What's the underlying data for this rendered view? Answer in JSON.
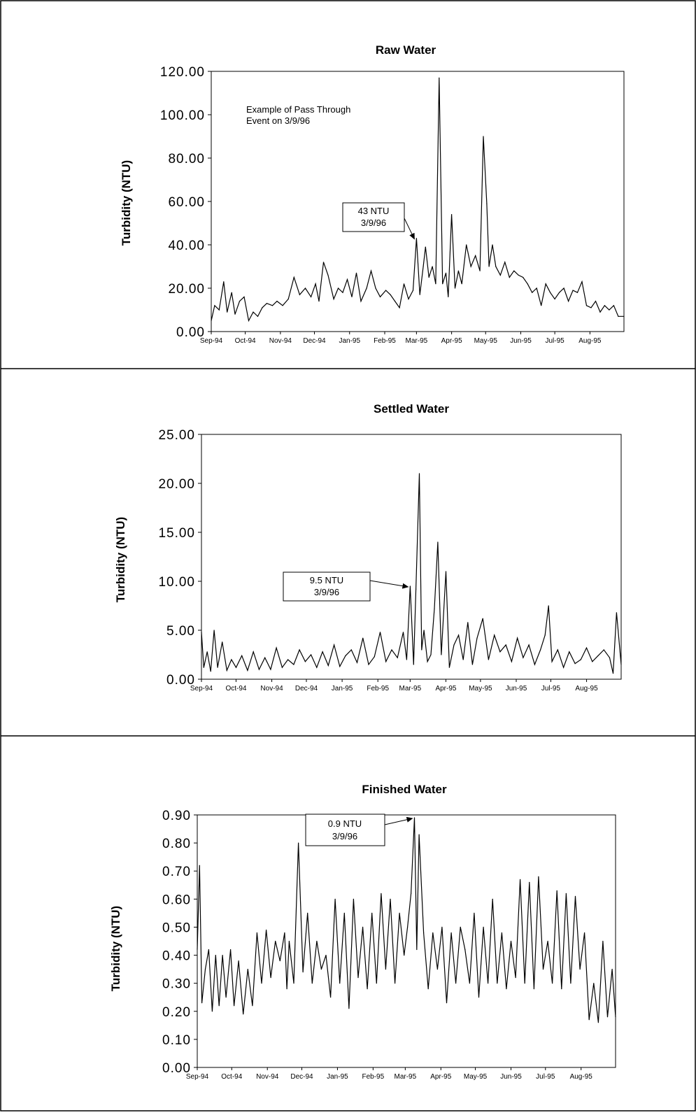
{
  "chart_data": [
    {
      "type": "line",
      "title": "Raw Water",
      "ylabel": "Turbidity (NTU)",
      "xlabel": "",
      "ylim": [
        0,
        120
      ],
      "yticks": [
        "0.00",
        "20.00",
        "40.00",
        "60.00",
        "80.00",
        "100.00",
        "120.00"
      ],
      "categories": [
        "Sep-94",
        "Oct-94",
        "Nov-94",
        "Dec-94",
        "Jan-95",
        "Feb-95",
        "Mar-95",
        "Apr-95",
        "May-95",
        "Jun-95",
        "Jul-95",
        "Aug-95"
      ],
      "x_range": [
        "1994-09-01",
        "1995-08-31"
      ],
      "grid": false,
      "series": [
        {
          "x": [
            "1994-09-01",
            "1994-09-04",
            "1994-09-08",
            "1994-09-12",
            "1994-09-15",
            "1994-09-19",
            "1994-09-22",
            "1994-09-26",
            "1994-09-30",
            "1994-10-04",
            "1994-10-08",
            "1994-10-12",
            "1994-10-16",
            "1994-10-20",
            "1994-10-25",
            "1994-10-29",
            "1994-11-03",
            "1994-11-08",
            "1994-11-13",
            "1994-11-18",
            "1994-11-23",
            "1994-11-28",
            "1994-12-02",
            "1994-12-05",
            "1994-12-09",
            "1994-12-13",
            "1994-12-18",
            "1994-12-22",
            "1994-12-26",
            "1994-12-30",
            "1995-01-03",
            "1995-01-07",
            "1995-01-11",
            "1995-01-16",
            "1995-01-20",
            "1995-01-24",
            "1995-01-28",
            "1995-02-02",
            "1995-02-06",
            "1995-02-10",
            "1995-02-14",
            "1995-02-18",
            "1995-02-22",
            "1995-02-26",
            "1995-03-01",
            "1995-03-04",
            "1995-03-07",
            "1995-03-09",
            "1995-03-12",
            "1995-03-15",
            "1995-03-18",
            "1995-03-21",
            "1995-03-24",
            "1995-03-27",
            "1995-03-29",
            "1995-04-01",
            "1995-04-04",
            "1995-04-07",
            "1995-04-10",
            "1995-04-14",
            "1995-04-18",
            "1995-04-22",
            "1995-04-26",
            "1995-04-29",
            "1995-05-02",
            "1995-05-04",
            "1995-05-07",
            "1995-05-10",
            "1995-05-14",
            "1995-05-18",
            "1995-05-22",
            "1995-05-26",
            "1995-05-30",
            "1995-06-03",
            "1995-06-07",
            "1995-06-11",
            "1995-06-15",
            "1995-06-19",
            "1995-06-23",
            "1995-06-27",
            "1995-07-01",
            "1995-07-05",
            "1995-07-09",
            "1995-07-13",
            "1995-07-17",
            "1995-07-21",
            "1995-07-25",
            "1995-07-29",
            "1995-08-02",
            "1995-08-06",
            "1995-08-10",
            "1995-08-14",
            "1995-08-18",
            "1995-08-22",
            "1995-08-26",
            "1995-08-31"
          ],
          "values": [
            5,
            12,
            10,
            23,
            9,
            18,
            8,
            14,
            16,
            5,
            9,
            7,
            11,
            13,
            12,
            14,
            12,
            15,
            25,
            17,
            20,
            16,
            22,
            14,
            32,
            26,
            15,
            20,
            18,
            24,
            16,
            27,
            14,
            20,
            28,
            20,
            16,
            19,
            17,
            14,
            11,
            22,
            15,
            19,
            43,
            17,
            30,
            39,
            25,
            30,
            22,
            117,
            22,
            27,
            16,
            54,
            20,
            28,
            22,
            40,
            30,
            35,
            28,
            90,
            59,
            30,
            40,
            30,
            26,
            32,
            25,
            28,
            26,
            25,
            22,
            18,
            20,
            12,
            22,
            18,
            15,
            18,
            20,
            14,
            19,
            18,
            23,
            12,
            11,
            14,
            9,
            12,
            10,
            12,
            7,
            7
          ]
        }
      ],
      "annotations": [
        {
          "text": [
            "Example of Pass Through",
            "Event on 3/9/96"
          ]
        },
        {
          "text": [
            "43 NTU",
            "3/9/96"
          ],
          "x": "1995-03-01",
          "y": 43
        }
      ]
    },
    {
      "type": "line",
      "title": "Settled Water",
      "ylabel": "Turbidity (NTU)",
      "xlabel": "",
      "ylim": [
        0,
        25
      ],
      "yticks": [
        "0.00",
        "5.00",
        "10.00",
        "15.00",
        "20.00",
        "25.00"
      ],
      "categories": [
        "Sep-94",
        "Oct-94",
        "Nov-94",
        "Dec-94",
        "Jan-95",
        "Feb-95",
        "Mar-95",
        "Apr-95",
        "May-95",
        "Jun-95",
        "Jul-95",
        "Aug-95"
      ],
      "x_range": [
        "1994-09-01",
        "1995-08-31"
      ],
      "grid": false,
      "series": [
        {
          "x": [
            "1994-09-01",
            "1994-09-03",
            "1994-09-06",
            "1994-09-09",
            "1994-09-12",
            "1994-09-15",
            "1994-09-19",
            "1994-09-23",
            "1994-09-27",
            "1994-10-01",
            "1994-10-06",
            "1994-10-11",
            "1994-10-16",
            "1994-10-21",
            "1994-10-26",
            "1994-10-31",
            "1994-11-05",
            "1994-11-10",
            "1994-11-15",
            "1994-11-20",
            "1994-11-25",
            "1994-11-30",
            "1994-12-05",
            "1994-12-10",
            "1994-12-15",
            "1994-12-20",
            "1994-12-25",
            "1994-12-30",
            "1995-01-04",
            "1995-01-09",
            "1995-01-14",
            "1995-01-19",
            "1995-01-24",
            "1995-01-29",
            "1995-02-03",
            "1995-02-08",
            "1995-02-13",
            "1995-02-18",
            "1995-02-23",
            "1995-02-26",
            "1995-03-01",
            "1995-03-04",
            "1995-03-06",
            "1995-03-09",
            "1995-03-11",
            "1995-03-13",
            "1995-03-16",
            "1995-03-19",
            "1995-03-22",
            "1995-03-25",
            "1995-03-28",
            "1995-04-01",
            "1995-04-04",
            "1995-04-08",
            "1995-04-12",
            "1995-04-16",
            "1995-04-20",
            "1995-04-24",
            "1995-04-28",
            "1995-05-03",
            "1995-05-08",
            "1995-05-13",
            "1995-05-18",
            "1995-05-23",
            "1995-05-28",
            "1995-06-02",
            "1995-06-07",
            "1995-06-12",
            "1995-06-17",
            "1995-06-22",
            "1995-06-26",
            "1995-06-29",
            "1995-07-02",
            "1995-07-07",
            "1995-07-12",
            "1995-07-17",
            "1995-07-22",
            "1995-07-27",
            "1995-08-01",
            "1995-08-06",
            "1995-08-11",
            "1995-08-16",
            "1995-08-21",
            "1995-08-24",
            "1995-08-27",
            "1995-08-31"
          ],
          "values": [
            4.8,
            1.2,
            2.8,
            0.8,
            5.0,
            1.2,
            3.8,
            0.9,
            2.0,
            1.2,
            2.4,
            0.9,
            2.8,
            1.0,
            2.2,
            1.0,
            3.2,
            1.2,
            2.0,
            1.5,
            3.0,
            1.8,
            2.5,
            1.2,
            2.8,
            1.4,
            3.5,
            1.3,
            2.4,
            3.0,
            1.7,
            4.2,
            1.5,
            2.3,
            4.8,
            1.8,
            3.0,
            2.2,
            4.8,
            2.0,
            9.5,
            1.5,
            9.2,
            21.0,
            3.0,
            5.0,
            1.8,
            2.5,
            7.2,
            14.0,
            2.5,
            11.0,
            1.2,
            3.5,
            4.5,
            2.0,
            5.8,
            1.5,
            4.2,
            6.2,
            2.0,
            4.5,
            2.8,
            3.5,
            1.8,
            4.2,
            2.2,
            3.5,
            1.5,
            3.0,
            4.5,
            7.5,
            1.8,
            3.0,
            1.2,
            2.8,
            1.6,
            2.0,
            3.2,
            1.8,
            2.4,
            3.0,
            2.2,
            0.6,
            6.8,
            1.5
          ]
        }
      ],
      "annotations": [
        {
          "text": [
            "9.5 NTU",
            "3/9/96"
          ],
          "x": "1995-03-01",
          "y": 9.5
        }
      ]
    },
    {
      "type": "line",
      "title": "Finished Water",
      "ylabel": "Turbidity (NTU)",
      "xlabel": "",
      "ylim": [
        0,
        0.9
      ],
      "yticks": [
        "0.00",
        "0.10",
        "0.20",
        "0.30",
        "0.40",
        "0.50",
        "0.60",
        "0.70",
        "0.80",
        "0.90"
      ],
      "categories": [
        "Sep-94",
        "Oct-94",
        "Nov-94",
        "Dec-94",
        "Jan-95",
        "Feb-95",
        "Mar-95",
        "Apr-95",
        "May-95",
        "Jun-95",
        "Jul-95",
        "Aug-95"
      ],
      "x_range": [
        "1994-09-01",
        "1995-08-31"
      ],
      "grid": false,
      "series": [
        {
          "x": [
            "1994-09-01",
            "1994-09-03",
            "1994-09-05",
            "1994-09-08",
            "1994-09-11",
            "1994-09-14",
            "1994-09-17",
            "1994-09-20",
            "1994-09-23",
            "1994-09-26",
            "1994-09-30",
            "1994-10-03",
            "1994-10-07",
            "1994-10-11",
            "1994-10-15",
            "1994-10-19",
            "1994-10-23",
            "1994-10-27",
            "1994-10-31",
            "1994-11-04",
            "1994-11-08",
            "1994-11-12",
            "1994-11-16",
            "1994-11-18",
            "1994-11-20",
            "1994-11-24",
            "1994-11-28",
            "1994-12-02",
            "1994-12-06",
            "1994-12-10",
            "1994-12-14",
            "1994-12-18",
            "1994-12-22",
            "1994-12-26",
            "1994-12-30",
            "1995-01-03",
            "1995-01-07",
            "1995-01-11",
            "1995-01-15",
            "1995-01-19",
            "1995-01-23",
            "1995-01-27",
            "1995-01-31",
            "1995-02-04",
            "1995-02-08",
            "1995-02-12",
            "1995-02-16",
            "1995-02-20",
            "1995-02-24",
            "1995-02-28",
            "1995-03-03",
            "1995-03-06",
            "1995-03-09",
            "1995-03-11",
            "1995-03-13",
            "1995-03-17",
            "1995-03-21",
            "1995-03-25",
            "1995-03-29",
            "1995-04-02",
            "1995-04-06",
            "1995-04-10",
            "1995-04-14",
            "1995-04-18",
            "1995-04-22",
            "1995-04-26",
            "1995-04-30",
            "1995-05-04",
            "1995-05-08",
            "1995-05-12",
            "1995-05-16",
            "1995-05-20",
            "1995-05-24",
            "1995-05-28",
            "1995-06-01",
            "1995-06-05",
            "1995-06-09",
            "1995-06-13",
            "1995-06-17",
            "1995-06-21",
            "1995-06-25",
            "1995-06-29",
            "1995-07-03",
            "1995-07-07",
            "1995-07-11",
            "1995-07-15",
            "1995-07-19",
            "1995-07-23",
            "1995-07-27",
            "1995-07-31",
            "1995-08-04",
            "1995-08-08",
            "1995-08-12",
            "1995-08-16",
            "1995-08-20",
            "1995-08-24",
            "1995-08-28",
            "1995-08-31"
          ],
          "values": [
            0.42,
            0.72,
            0.23,
            0.35,
            0.42,
            0.2,
            0.4,
            0.22,
            0.4,
            0.25,
            0.42,
            0.22,
            0.38,
            0.19,
            0.35,
            0.22,
            0.48,
            0.3,
            0.49,
            0.32,
            0.45,
            0.38,
            0.48,
            0.28,
            0.45,
            0.3,
            0.8,
            0.34,
            0.55,
            0.3,
            0.45,
            0.35,
            0.4,
            0.25,
            0.6,
            0.3,
            0.55,
            0.21,
            0.6,
            0.32,
            0.5,
            0.28,
            0.55,
            0.3,
            0.62,
            0.35,
            0.6,
            0.3,
            0.55,
            0.4,
            0.5,
            0.62,
            0.89,
            0.42,
            0.83,
            0.48,
            0.28,
            0.48,
            0.35,
            0.5,
            0.23,
            0.48,
            0.3,
            0.5,
            0.42,
            0.3,
            0.55,
            0.25,
            0.5,
            0.3,
            0.6,
            0.3,
            0.48,
            0.28,
            0.45,
            0.32,
            0.67,
            0.3,
            0.66,
            0.28,
            0.68,
            0.35,
            0.45,
            0.3,
            0.63,
            0.28,
            0.62,
            0.3,
            0.61,
            0.35,
            0.48,
            0.17,
            0.3,
            0.16,
            0.45,
            0.18,
            0.35,
            0.18
          ]
        }
      ],
      "annotations": [
        {
          "text": [
            "0.9 NTU",
            "3/9/96"
          ],
          "x": "1995-03-09",
          "y": 0.89
        }
      ]
    }
  ]
}
